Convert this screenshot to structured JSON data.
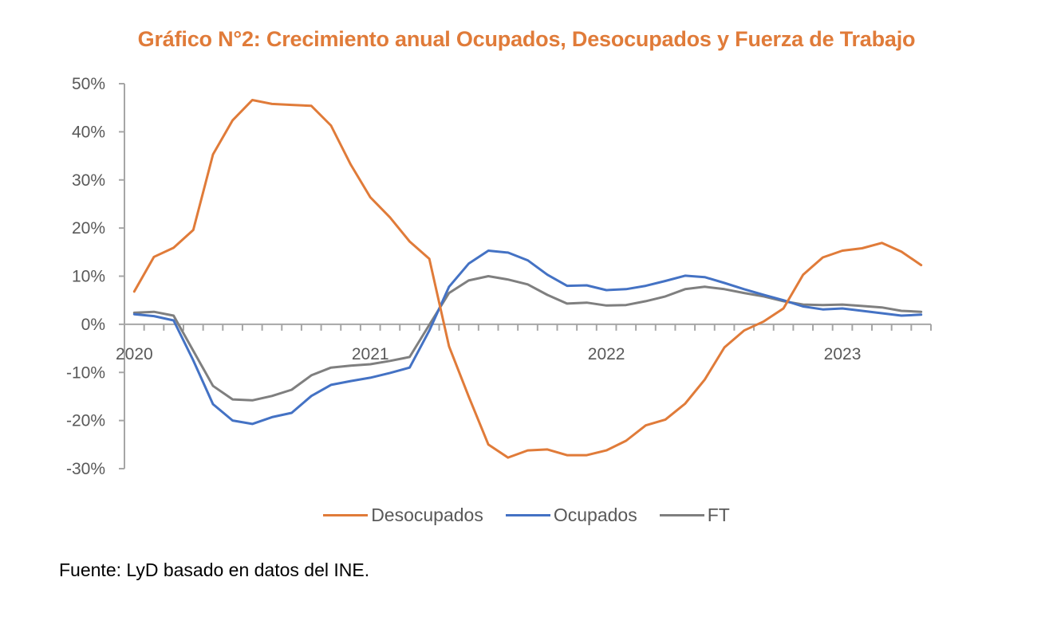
{
  "chart_data": {
    "type": "line",
    "title": "Gráfico N°2: Crecimiento anual Ocupados, Desocupados y Fuerza de Trabajo",
    "xlabel": "",
    "ylabel": "",
    "ylim": [
      -30,
      50
    ],
    "y_ticks": [
      50,
      40,
      30,
      20,
      10,
      0,
      -10,
      -20,
      -30
    ],
    "y_tick_labels": [
      "50%",
      "40%",
      "30%",
      "20%",
      "10%",
      "0%",
      "-10%",
      "-20%",
      "-30%"
    ],
    "x_tick_labels": [
      {
        "label": "2020",
        "index": 0
      },
      {
        "label": "2021",
        "index": 12
      },
      {
        "label": "2022",
        "index": 24
      },
      {
        "label": "2023",
        "index": 36
      }
    ],
    "x_count": 41,
    "x_period": "monthly, Jan 2020 – May 2023",
    "grid": false,
    "legend_position": "bottom",
    "series": [
      {
        "name": "Desocupados",
        "color": "#E07B39",
        "values": [
          6.8,
          14.0,
          15.9,
          19.6,
          35.3,
          42.4,
          46.6,
          45.8,
          45.6,
          45.4,
          41.3,
          33.2,
          26.4,
          22.2,
          17.2,
          13.6,
          -4.6,
          -15.0,
          -25.0,
          -27.7,
          -26.2,
          -26.0,
          -27.2,
          -27.2,
          -26.2,
          -24.2,
          -21.0,
          -19.8,
          -16.5,
          -11.5,
          -4.8,
          -1.3,
          0.6,
          3.3,
          10.3,
          13.9,
          15.3,
          15.8,
          16.9,
          15.1,
          12.3
        ]
      },
      {
        "name": "Ocupados",
        "color": "#4472C4",
        "values": [
          2.1,
          1.7,
          0.8,
          -7.5,
          -16.6,
          -20.0,
          -20.7,
          -19.3,
          -18.4,
          -14.9,
          -12.6,
          -11.8,
          -11.1,
          -10.1,
          -9.0,
          -1.3,
          7.8,
          12.6,
          15.3,
          14.9,
          13.3,
          10.3,
          8.0,
          8.1,
          7.1,
          7.3,
          8.0,
          9.0,
          10.1,
          9.8,
          8.6,
          7.3,
          6.1,
          5.0,
          3.7,
          3.1,
          3.3,
          2.8,
          2.3,
          1.8,
          2.0
        ]
      },
      {
        "name": "FT",
        "color": "#7F7F7F",
        "values": [
          2.4,
          2.6,
          1.8,
          -5.5,
          -12.8,
          -15.6,
          -15.8,
          -14.9,
          -13.6,
          -10.6,
          -9.0,
          -8.6,
          -8.3,
          -7.6,
          -6.8,
          -0.1,
          6.5,
          9.1,
          10.0,
          9.3,
          8.3,
          6.1,
          4.3,
          4.5,
          3.9,
          4.0,
          4.8,
          5.8,
          7.3,
          7.8,
          7.3,
          6.5,
          5.8,
          4.8,
          4.1,
          4.0,
          4.1,
          3.8,
          3.5,
          2.8,
          2.6
        ]
      }
    ]
  },
  "source_note": "Fuente: LyD basado en datos del INE."
}
